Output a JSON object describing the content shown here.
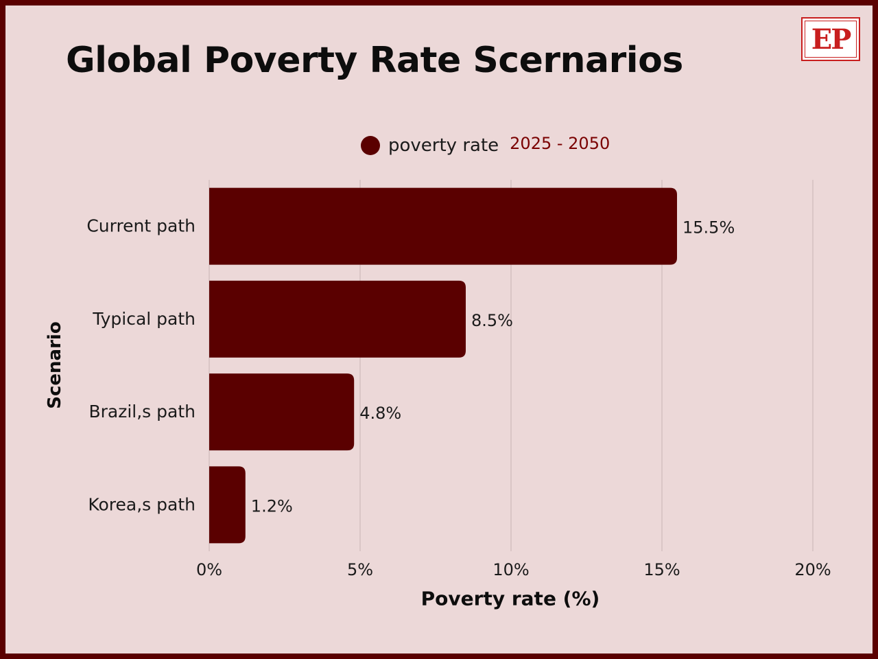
{
  "header": {
    "title": "Global Poverty Rate Scernarios",
    "logo_text": "EP"
  },
  "colors": {
    "bar": "#5a0000",
    "background": "#ecd8d8",
    "border": "#5a0000",
    "logo": "#c81e1e",
    "range_text": "#7a0000",
    "grid": "#c9b4b4"
  },
  "legend": {
    "label": "poverty rate",
    "range": "2025 - 2050"
  },
  "chart_data": {
    "type": "bar",
    "orientation": "horizontal",
    "categories": [
      "Current path",
      "Typical path",
      "Brazil,s path",
      "Korea,s path"
    ],
    "series": [
      {
        "name": "poverty rate",
        "values": [
          15.5,
          8.5,
          4.8,
          1.2
        ]
      }
    ],
    "data_labels": [
      "15.5%",
      "8.5%",
      "4.8%",
      "1.2%"
    ],
    "xlabel": "Poverty rate (%)",
    "ylabel": "Scenario",
    "xlim": [
      0,
      20
    ],
    "xticks": [
      0,
      5,
      10,
      15,
      20
    ],
    "xtick_labels": [
      "0%",
      "5%",
      "10%",
      "15%",
      "20%"
    ],
    "grid": "vertical",
    "legend_position": "top"
  }
}
